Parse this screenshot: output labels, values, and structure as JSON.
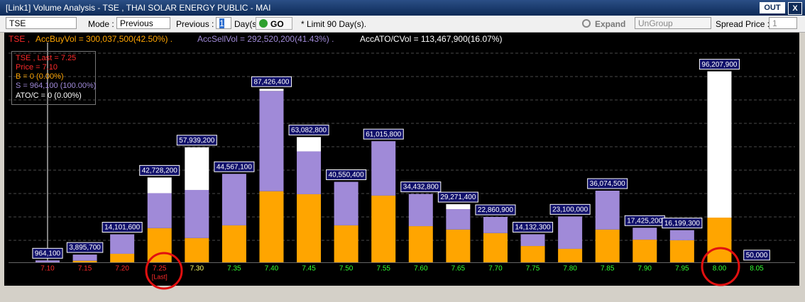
{
  "window": {
    "title": "[Link1] Volume Analysis - TSE , THAI SOLAR ENERGY PUBLIC - MAI",
    "out": "OUT",
    "close": "X"
  },
  "toolbar": {
    "symbol": "TSE",
    "mode_label": "Mode :",
    "mode": "Previous",
    "previous_label": "Previous :",
    "previous": "1",
    "days": "Day(s)",
    "go": "GO",
    "limit_note": "* Limit 90 Day(s).",
    "expand": "Expand",
    "group": "UnGroup",
    "spread_label": "Spread Price :",
    "spread": "1"
  },
  "summary": {
    "symbol": "TSE ,",
    "buy": "AccBuyVol = 300,037,500(42.50%) .",
    "sell": "AccSellVol = 292,520,200(41.43%) .",
    "ato": "AccATO/CVol = 113,467,900(16.07%)"
  },
  "info": {
    "last": "TSE , Last = 7.25",
    "price": "Price = 7.10",
    "buy": "B = 0 (0.00%)",
    "sell": "S = 964,100 (100.00%)",
    "ato": "ATO/C = 0 (0.00%)"
  },
  "chart_data": {
    "type": "bar",
    "stacked": true,
    "categories": [
      "7.10",
      "7.15",
      "7.20",
      "7.25",
      "7.30",
      "7.35",
      "7.40",
      "7.45",
      "7.50",
      "7.55",
      "7.60",
      "7.65",
      "7.70",
      "7.75",
      "7.80",
      "7.85",
      "7.90",
      "7.95",
      "8.00",
      "8.05"
    ],
    "category_colors": [
      "#ff2a2a",
      "#ff2a2a",
      "#ff2a2a",
      "#ff2a2a",
      "#ffff66",
      "#33ff33",
      "#33ff33",
      "#33ff33",
      "#33ff33",
      "#33ff33",
      "#33ff33",
      "#33ff33",
      "#33ff33",
      "#33ff33",
      "#33ff33",
      "#33ff33",
      "#33ff33",
      "#33ff33",
      "#33ff33",
      "#33ff33"
    ],
    "series": [
      {
        "color": "#ffa500",
        "values": [
          0,
          800000,
          4300000,
          17200000,
          12200000,
          18600000,
          35800000,
          34300000,
          18600000,
          33600000,
          18200000,
          16500000,
          14700000,
          8200000,
          6800000,
          16500000,
          11400000,
          11100000,
          22507900,
          50000
        ]
      },
      {
        "color": "#a08ad8",
        "values": [
          964100,
          3095700,
          9801600,
          17628200,
          24239200,
          25967100,
          50526400,
          21582800,
          21950400,
          27415800,
          16232800,
          10271400,
          8160900,
          5932300,
          16300000,
          19574500,
          6025200,
          5099300,
          0,
          0
        ]
      },
      {
        "color": "#ffffff",
        "values": [
          0,
          0,
          0,
          7900000,
          21500000,
          0,
          1100000,
          7200000,
          0,
          0,
          0,
          2500000,
          0,
          0,
          0,
          0,
          0,
          0,
          73700000,
          0
        ]
      }
    ],
    "totals": [
      964100,
      3895700,
      14101600,
      42728200,
      57939200,
      44567100,
      87426400,
      63082800,
      40550400,
      61015800,
      34432800,
      29271400,
      22860900,
      14132300,
      23100000,
      36074500,
      17425200,
      16199300,
      96207900,
      50000
    ],
    "total_labels": [
      "964,100",
      "3,895,700",
      "14,101,600",
      "42,728,200",
      "57,939,200",
      "44,567,100",
      "87,426,400",
      "63,082,800",
      "40,550,400",
      "61,015,800",
      "34,432,800",
      "29,271,400",
      "22,860,900",
      "14,132,300",
      "23,100,000",
      "36,074,500",
      "17,425,200",
      "16,199,300",
      "96,207,900",
      "50,000"
    ],
    "annotations": [
      {
        "text": "[Last]",
        "x": "7.25"
      }
    ],
    "ylim": [
      0,
      100000000
    ]
  }
}
